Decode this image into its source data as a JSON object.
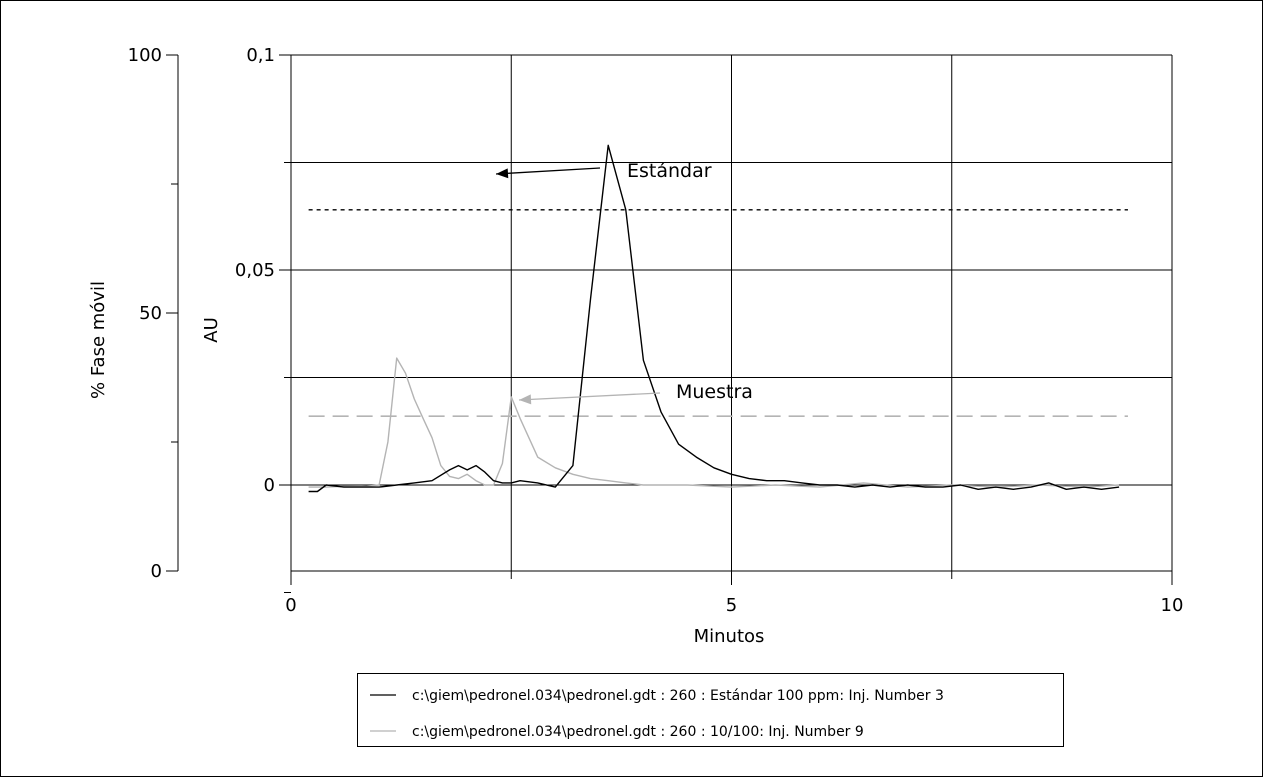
{
  "chart_data": {
    "type": "line",
    "xlabel": "Minutos",
    "ylabel": "AU",
    "y2label": "% Fase móvil",
    "xlim": [
      0,
      10
    ],
    "ylim": [
      -0.02,
      0.1
    ],
    "y2lim": [
      0,
      100
    ],
    "x_ticks": [
      0,
      5,
      10
    ],
    "x_tick_labels": [
      "0",
      "5",
      "10"
    ],
    "y_ticks": [
      0,
      0.05,
      0.1
    ],
    "y_tick_labels": [
      "0",
      "0,05",
      "0,1"
    ],
    "y2_ticks": [
      0,
      50,
      100
    ],
    "y2_tick_labels": [
      "0",
      "50",
      "100"
    ],
    "grid": true,
    "legend_position": "bottom",
    "series": [
      {
        "name": "c:\\giem\\pedronel.034\\pedronel.gdt : 260 : Estándar 100 ppm: Inj. Number 3",
        "color": "#000000",
        "x": [
          0.2,
          0.3,
          0.4,
          0.6,
          0.8,
          1.0,
          1.2,
          1.4,
          1.6,
          1.8,
          1.9,
          2.0,
          2.1,
          2.2,
          2.3,
          2.4,
          2.5,
          2.6,
          2.8,
          3.0,
          3.2,
          3.4,
          3.6,
          3.8,
          4.0,
          4.2,
          4.4,
          4.6,
          4.8,
          5.0,
          5.2,
          5.4,
          5.6,
          5.8,
          6.0,
          6.2,
          6.4,
          6.6,
          6.8,
          7.0,
          7.2,
          7.4,
          7.6,
          7.8,
          8.0,
          8.2,
          8.4,
          8.6,
          8.8,
          9.0,
          9.2,
          9.4
        ],
        "y": [
          -0.0015,
          -0.0015,
          0.0,
          -0.0005,
          -0.0005,
          -0.0005,
          0.0,
          0.0005,
          0.001,
          0.0035,
          0.0045,
          0.0035,
          0.0045,
          0.003,
          0.001,
          0.0005,
          0.0005,
          0.001,
          0.0005,
          -0.0005,
          0.0045,
          0.0432,
          0.079,
          0.064,
          0.029,
          0.017,
          0.0095,
          0.0065,
          0.004,
          0.0025,
          0.0015,
          0.001,
          0.001,
          0.0005,
          0.0,
          0.0,
          -0.0005,
          0.0,
          -0.0005,
          0.0,
          -0.0005,
          -0.0005,
          0.0,
          -0.001,
          -0.0005,
          -0.001,
          -0.0005,
          0.0005,
          -0.001,
          -0.0005,
          -0.001,
          -0.0005
        ],
        "_note_unused": ""
      },
      {
        "name": "c:\\giem\\pedronel.034\\pedronel.gdt : 260 : 10/100: Inj. Number 9",
        "color": "#b4b4b4",
        "x": [
          0.2,
          0.4,
          0.6,
          0.8,
          1.0,
          1.1,
          1.2,
          1.3,
          1.4,
          1.5,
          1.6,
          1.7,
          1.8,
          1.9,
          2.0,
          2.1,
          2.2,
          2.3,
          2.4,
          2.5,
          2.6,
          2.8,
          3.0,
          3.2,
          3.4,
          3.6,
          3.8,
          4.0,
          4.5,
          5.0,
          5.5,
          6.0,
          6.5,
          7.0,
          7.5,
          8.0,
          8.5,
          9.0,
          9.4
        ],
        "y": [
          -0.0005,
          -0.0005,
          -0.0003,
          -0.0004,
          0.0,
          0.01,
          0.0295,
          0.026,
          0.02,
          0.0155,
          0.011,
          0.0045,
          0.002,
          0.0015,
          0.0025,
          0.001,
          0.0,
          0.0,
          0.005,
          0.0205,
          0.0155,
          0.0065,
          0.004,
          0.0025,
          0.0015,
          0.001,
          0.0005,
          0.0,
          0.0,
          -0.0005,
          0.0,
          -0.0005,
          0.0005,
          -0.0005,
          0.0,
          -0.0005,
          0.0,
          -0.0005,
          0.0
        ]
      }
    ],
    "reference_lines": [
      {
        "style": "dotted",
        "color": "#000000",
        "y2_value": 70,
        "x_range": [
          0.2,
          9.5
        ]
      },
      {
        "style": "dashed",
        "color": "#b4b4b4",
        "y2_value": 30,
        "x_range": [
          0.2,
          9.5
        ]
      }
    ],
    "annotations": [
      {
        "text": "Estándar",
        "color": "#000000"
      },
      {
        "text": "Muestra",
        "color": "#b4b4b4"
      }
    ]
  }
}
